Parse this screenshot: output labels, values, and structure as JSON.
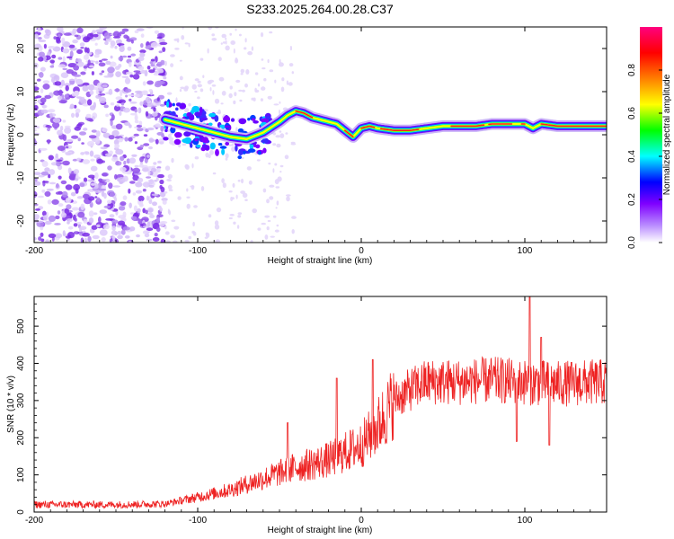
{
  "title": "S233.2025.264.00.28.C37",
  "chart_data": [
    {
      "type": "heatmap",
      "name": "spectrogram",
      "xlabel": "Height of straight line (km)",
      "ylabel": "Frequency (Hz)",
      "xlim": [
        -200,
        150
      ],
      "ylim": [
        -25,
        25
      ],
      "xticks": [
        -200,
        -100,
        0,
        100
      ],
      "xtick_labels": [
        "-200",
        "-100",
        "0",
        "100"
      ],
      "yticks": [
        -20,
        -10,
        0,
        10,
        20
      ],
      "ytick_labels": [
        "-20",
        "-10",
        "0",
        "10",
        "20"
      ],
      "ridge": {
        "x": [
          -120,
          -110,
          -100,
          -90,
          -80,
          -70,
          -60,
          -50,
          -45,
          -40,
          -35,
          -30,
          -25,
          -20,
          -15,
          -10,
          -5,
          0,
          5,
          10,
          20,
          30,
          40,
          50,
          60,
          70,
          80,
          90,
          100,
          105,
          110,
          120,
          130,
          140,
          150
        ],
        "y": [
          3.5,
          2.5,
          1.5,
          0.5,
          -0.5,
          -1.0,
          0.5,
          3.0,
          4.5,
          5.5,
          5.0,
          4.0,
          3.5,
          3.0,
          2.5,
          1.0,
          -0.5,
          1.5,
          2.0,
          1.5,
          1.0,
          1.0,
          1.5,
          2.0,
          2.0,
          2.0,
          2.5,
          2.5,
          2.5,
          1.5,
          2.5,
          2.0,
          2.0,
          2.0,
          2.0
        ]
      },
      "noise_region_x": [
        -200,
        -120
      ],
      "colorbar": {
        "label": "Normalized spectral amplitude",
        "range": [
          0.0,
          1.0
        ],
        "ticks": [
          0.0,
          0.2,
          0.4,
          0.6,
          0.8
        ],
        "tick_labels": [
          "0.0",
          "0.2",
          "0.4",
          "0.6",
          "0.8"
        ],
        "colors": [
          "#ffffff",
          "#7f00ff",
          "#0000ff",
          "#00ffff",
          "#00ff00",
          "#ffff00",
          "#ff7f00",
          "#ff0000",
          "#ff007f"
        ]
      }
    },
    {
      "type": "line",
      "name": "snr",
      "xlabel": "Height of straight line (km)",
      "ylabel": "SNR (10 * v/v)",
      "xlim": [
        -200,
        150
      ],
      "ylim": [
        0,
        580
      ],
      "xticks": [
        -200,
        -100,
        0,
        100
      ],
      "xtick_labels": [
        "-200",
        "-100",
        "0",
        "100"
      ],
      "yticks": [
        0,
        100,
        200,
        300,
        400,
        500
      ],
      "ytick_labels": [
        "0",
        "100",
        "200",
        "300",
        "400",
        "500"
      ],
      "color": "#ee2222",
      "trend": {
        "x": [
          -200,
          -150,
          -120,
          -100,
          -80,
          -60,
          -40,
          -20,
          0,
          10,
          20,
          30,
          40,
          60,
          80,
          100,
          120,
          150
        ],
        "y": [
          20,
          20,
          22,
          40,
          60,
          90,
          120,
          140,
          180,
          230,
          300,
          330,
          350,
          350,
          355,
          350,
          345,
          350
        ]
      },
      "spikes": [
        {
          "x": -45,
          "y": 240
        },
        {
          "x": -15,
          "y": 360
        },
        {
          "x": 7,
          "y": 410
        },
        {
          "x": 103,
          "y": 580
        },
        {
          "x": 110,
          "y": 470
        },
        {
          "x": 95,
          "y": 190
        },
        {
          "x": 115,
          "y": 180
        }
      ]
    }
  ]
}
